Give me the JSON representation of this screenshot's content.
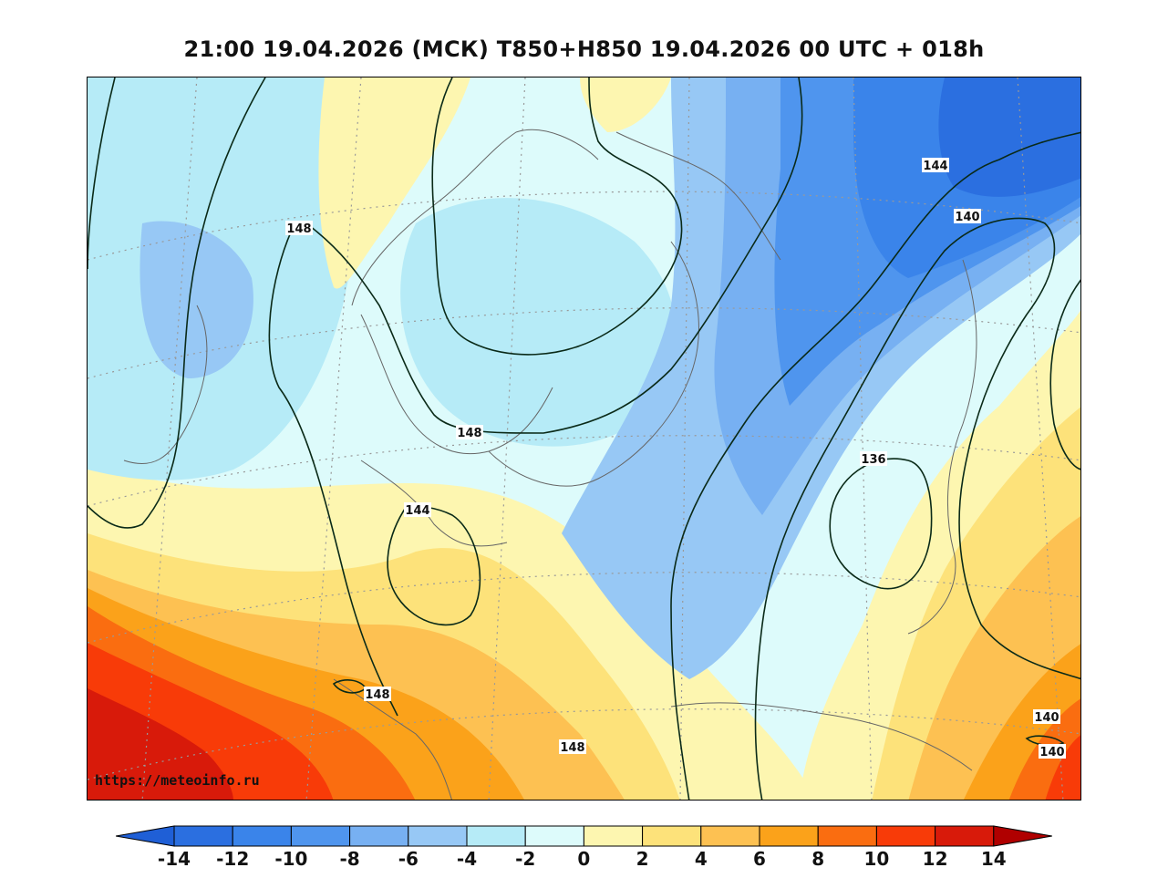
{
  "title": "21:00 19.04.2026 (МСК) T850+H850 19.04.2026 00 UTC + 018h",
  "source_url": "https://meteoinfo.ru",
  "colorbar": {
    "ticks": [
      "-14",
      "-12",
      "-10",
      "-8",
      "-6",
      "-4",
      "-2",
      "0",
      "2",
      "4",
      "6",
      "8",
      "10",
      "12",
      "14"
    ],
    "colors": [
      "#2b6fe0",
      "#3a84ea",
      "#4f95ee",
      "#77b0f2",
      "#97c8f5",
      "#b6ebf7",
      "#ddfbfb",
      "#fdf6b0",
      "#fde27a",
      "#fdc152",
      "#fba21a",
      "#fa6d10",
      "#f83b08",
      "#d81a0a"
    ],
    "under_color": "#1f5fd6",
    "over_color": "#b00000"
  },
  "contour_labels": [
    {
      "text": "148"
    },
    {
      "text": "148"
    },
    {
      "text": "144"
    },
    {
      "text": "148"
    },
    {
      "text": "148"
    },
    {
      "text": "144"
    },
    {
      "text": "140"
    },
    {
      "text": "136"
    },
    {
      "text": "140"
    },
    {
      "text": "140"
    }
  ]
}
